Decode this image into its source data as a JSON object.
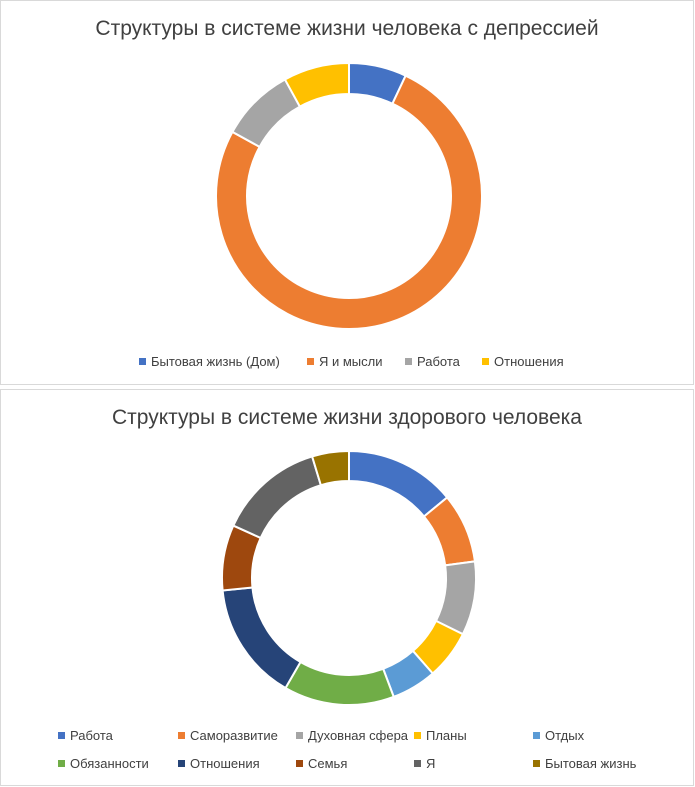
{
  "chart_data": [
    {
      "type": "donut",
      "title": "Структуры в системе жизни человека с депрессией",
      "categories": [
        "Бытовая жизнь (Дом)",
        "Я и мысли",
        "Работа",
        "Отношения"
      ],
      "values": [
        7,
        76,
        9,
        8
      ],
      "colors": [
        "#4472C4",
        "#ED7D31",
        "#A5A5A5",
        "#FFC000"
      ],
      "legend_position": "bottom"
    },
    {
      "type": "donut",
      "title": "Структуры в системе жизни здорового человека",
      "categories": [
        "Работа",
        "Саморазвитие",
        "Духовная сфера",
        "Планы",
        "Отдых",
        "Обязанности",
        "Отношения",
        "Семья",
        "Я",
        "Бытовая жизнь"
      ],
      "values": [
        13.5,
        8.5,
        9,
        6,
        5.5,
        13.5,
        14.5,
        8,
        13,
        4.5
      ],
      "colors": [
        "#4472C4",
        "#ED7D31",
        "#A5A5A5",
        "#FFC000",
        "#5B9BD5",
        "#70AD47",
        "#264478",
        "#9E480E",
        "#636363",
        "#997300"
      ],
      "legend_position": "bottom"
    }
  ]
}
